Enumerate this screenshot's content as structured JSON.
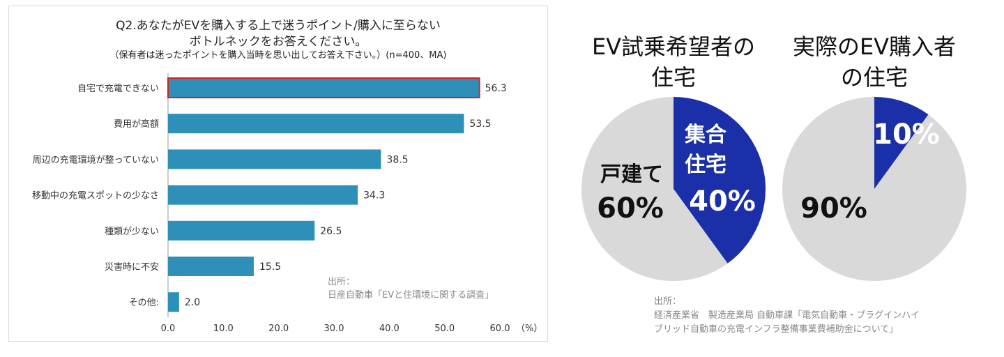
{
  "chart_data": [
    {
      "type": "bar",
      "orientation": "horizontal",
      "title": "Q2.あなたがEVを購入する上で迷うポイント/購入に至らない",
      "title_line2": "ボトルネックをお答えください。",
      "subtitle": "（保有者は迷ったポイントを購入当時を思い出してお答え下さい。）(n=400、MA)",
      "categories": [
        "自宅で充電できない",
        "費用が高額",
        "周辺の充電環境が整っていない",
        "移動中の充電スポットの少なさ",
        "種類が少ない",
        "災害時に不安",
        "その他:"
      ],
      "values": [
        56.3,
        53.5,
        38.5,
        34.3,
        26.5,
        15.5,
        2.0
      ],
      "value_labels": [
        "56.3",
        "53.5",
        "38.5",
        "34.3",
        "26.5",
        "15.5",
        "2.0"
      ],
      "highlighted_index": 0,
      "xlim": [
        0,
        60
      ],
      "xticks": [
        "0.0",
        "10.0",
        "20.0",
        "30.0",
        "40.0",
        "50.0",
        "60.0"
      ],
      "xunit": "（%）",
      "bar_color": "#2e8fb8",
      "highlight_color": "#d62020",
      "source_label": "出所：",
      "source": "日産自動車「EVと住環境に関する調査」"
    },
    {
      "type": "pie",
      "title": "EV試乗希望者の住宅",
      "title_lines": [
        "EV試乗希望者の",
        "住宅"
      ],
      "slices": [
        {
          "label": "集合住宅",
          "label_lines": [
            "集合",
            "住宅"
          ],
          "value": 40,
          "value_label": "40%",
          "color": "#1a2fa8"
        },
        {
          "label": "戸建て",
          "label_lines": [
            "戸建て"
          ],
          "value": 60,
          "value_label": "60%",
          "color": "#d9d9d9"
        }
      ]
    },
    {
      "type": "pie",
      "title": "実際のEV購入者の住宅",
      "title_lines": [
        "実際のEV購入者",
        "の住宅"
      ],
      "slices": [
        {
          "label": "",
          "value": 10,
          "value_label": "10%",
          "color": "#1a2fa8"
        },
        {
          "label": "",
          "value": 90,
          "value_label": "90%",
          "color": "#d9d9d9"
        }
      ],
      "source_label": "出所：",
      "source_lines": [
        "経済産業省　製造産業局 自動車課「電気自動車・プラグインハイ",
        "ブリッド自動車の充電インフラ整備事業費補助金について」"
      ]
    }
  ]
}
